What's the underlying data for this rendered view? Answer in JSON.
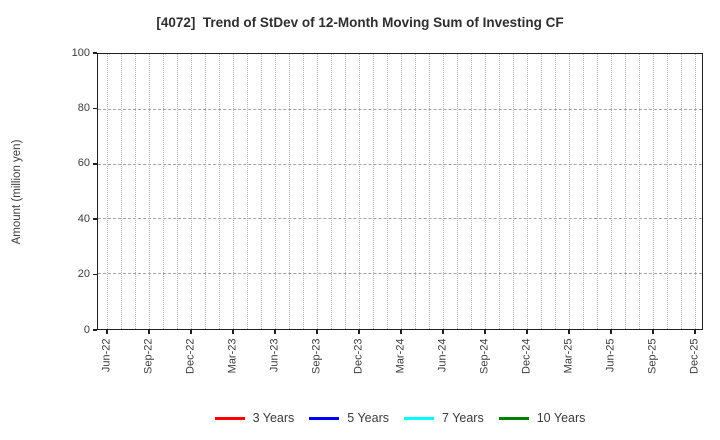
{
  "title": "[4072]  Trend of StDev of 12-Month Moving Sum of Investing CF",
  "chart_data": {
    "type": "line",
    "title": "[4072]  Trend of StDev of 12-Month Moving Sum of Investing CF",
    "xlabel": "",
    "ylabel": "Amount (million yen)",
    "ylim": [
      0,
      100
    ],
    "yticks": [
      0,
      20,
      40,
      60,
      80,
      100
    ],
    "x_tick_labels": [
      "Jun-22",
      "Sep-22",
      "Dec-22",
      "Mar-23",
      "Jun-23",
      "Sep-23",
      "Dec-23",
      "Mar-24",
      "Jun-24",
      "Sep-24",
      "Dec-24",
      "Mar-25",
      "Jun-25",
      "Sep-25",
      "Dec-25"
    ],
    "x_minor_gridlines": "monthly",
    "months_total": 43,
    "months_per_labeled_tick": 3,
    "grid": true,
    "legend_position": "bottom",
    "axis_color": "#1f1f1f",
    "grid_color_vertical": "#b2b2b2",
    "grid_color_horizontal": "#a3a3a3",
    "series": [
      {
        "name": "3 Years",
        "color": "#ff0000",
        "values": []
      },
      {
        "name": "5 Years",
        "color": "#0000ff",
        "values": []
      },
      {
        "name": "7 Years",
        "color": "#00ffff",
        "values": []
      },
      {
        "name": "10 Years",
        "color": "#008000",
        "values": []
      }
    ]
  }
}
